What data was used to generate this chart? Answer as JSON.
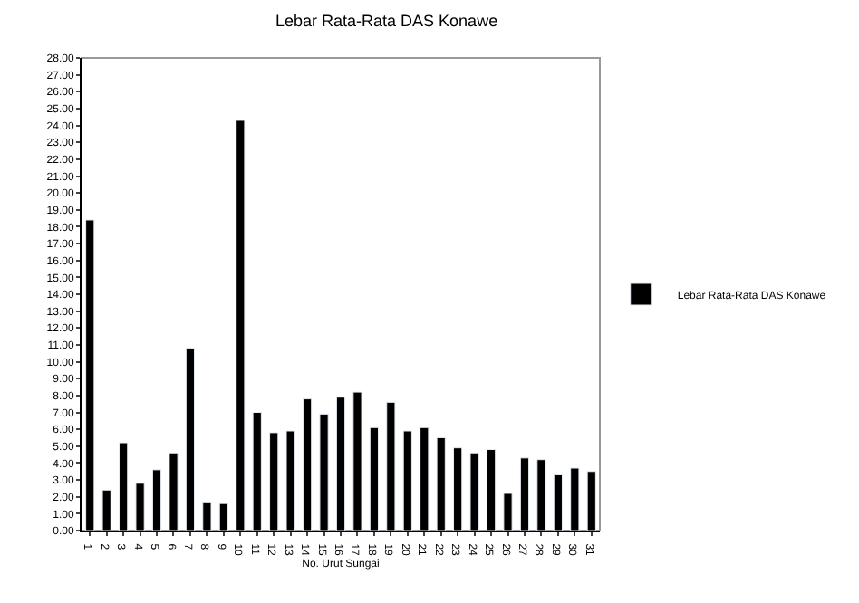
{
  "chart_data": {
    "type": "bar",
    "title": "Lebar Rata-Rata DAS Konawe",
    "xlabel": "No. Urut Sungai",
    "categories": [
      "1",
      "2",
      "3",
      "4",
      "5",
      "6",
      "7",
      "8",
      "9",
      "10",
      "11",
      "12",
      "13",
      "14",
      "15",
      "16",
      "17",
      "18",
      "19",
      "20",
      "21",
      "22",
      "23",
      "24",
      "25",
      "26",
      "27",
      "28",
      "29",
      "30",
      "31"
    ],
    "series": [
      {
        "name": "Lebar Rata-Rata DAS Konawe",
        "color": "#000000",
        "values": [
          18.4,
          2.4,
          5.2,
          2.8,
          3.6,
          4.6,
          10.8,
          1.7,
          1.6,
          24.3,
          7.0,
          5.8,
          5.9,
          7.8,
          6.9,
          7.9,
          8.2,
          6.1,
          7.6,
          5.9,
          6.1,
          5.5,
          4.9,
          4.6,
          4.8,
          2.2,
          4.3,
          4.2,
          3.3,
          3.7,
          3.5
        ]
      }
    ],
    "ylim": [
      0,
      28
    ],
    "yticks": [
      {
        "value": 0,
        "label": "0.00"
      },
      {
        "value": 1,
        "label": "1.00"
      },
      {
        "value": 2,
        "label": "2.00"
      },
      {
        "value": 3,
        "label": "3.00"
      },
      {
        "value": 4,
        "label": "4.00"
      },
      {
        "value": 5,
        "label": "5.00"
      },
      {
        "value": 6,
        "label": "6.00"
      },
      {
        "value": 7,
        "label": "7.00"
      },
      {
        "value": 8,
        "label": "8.00"
      },
      {
        "value": 9,
        "label": "9.00"
      },
      {
        "value": 10,
        "label": "10.00"
      },
      {
        "value": 11,
        "label": "11.00"
      },
      {
        "value": 12,
        "label": "12.00"
      },
      {
        "value": 13,
        "label": "13.00"
      },
      {
        "value": 14,
        "label": "14.00"
      },
      {
        "value": 15,
        "label": "15.00"
      },
      {
        "value": 16,
        "label": "16.00"
      },
      {
        "value": 17,
        "label": "17.00"
      },
      {
        "value": 18,
        "label": "18.00"
      },
      {
        "value": 19,
        "label": "19.00"
      },
      {
        "value": 20,
        "label": "20.00"
      },
      {
        "value": 21,
        "label": "21.00"
      },
      {
        "value": 22,
        "label": "22.00"
      },
      {
        "value": 23,
        "label": "23.00"
      },
      {
        "value": 24,
        "label": "24.00"
      },
      {
        "value": 25,
        "label": "25.00"
      },
      {
        "value": 26,
        "label": "26.00"
      },
      {
        "value": 27,
        "label": "27.00"
      },
      {
        "value": 28,
        "label": "28.00"
      }
    ],
    "grid": false,
    "legend": "right"
  }
}
